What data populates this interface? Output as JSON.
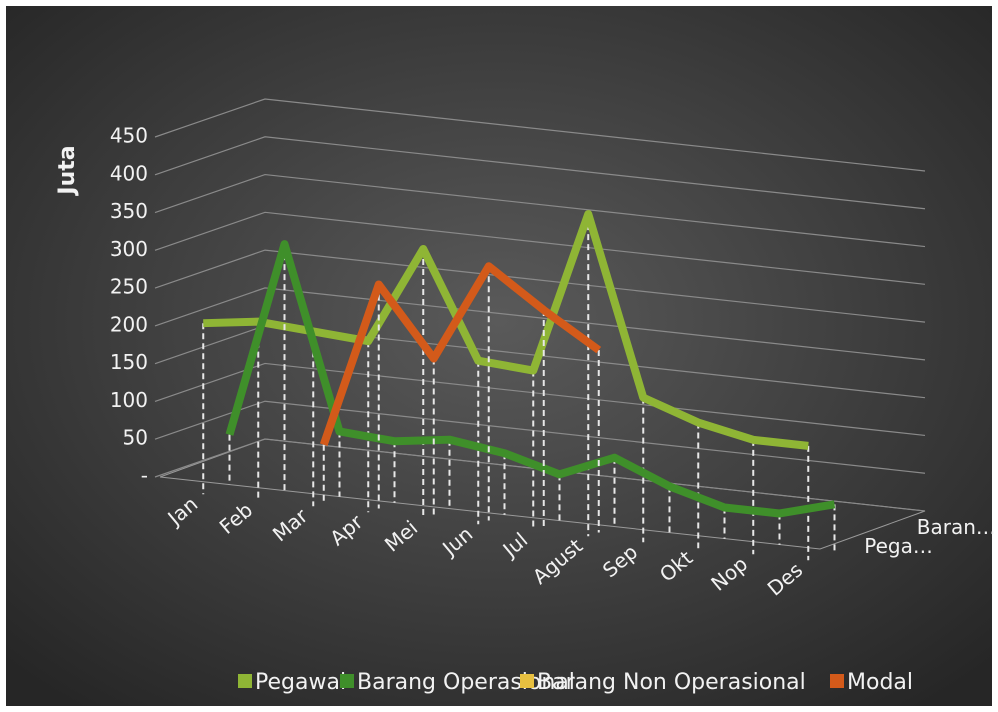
{
  "chart_data": {
    "type": "line3d",
    "y_axis_title": "Juta",
    "categories": [
      "Jan",
      "Feb",
      "Mar",
      "Apr",
      "Mei",
      "Jun",
      "Jul",
      "Agust",
      "Sep",
      "Okt",
      "Nop",
      "Des"
    ],
    "depth_labels": [
      "Pega…",
      "Baran…"
    ],
    "ylim": [
      0,
      450
    ],
    "yticks": [
      {
        "value": 0,
        "label": "-"
      },
      50,
      100,
      150,
      200,
      250,
      300,
      350,
      400,
      450
    ],
    "grid": true,
    "series": [
      {
        "name": "Pegawai",
        "color": "#8fb535",
        "values": [
          200,
          210,
          205,
          200,
          330,
          190,
          185,
          400,
          165,
          140,
          125,
          125
        ]
      },
      {
        "name": "Barang Operasional",
        "color": "#3f8f2a",
        "values": [
          40,
          300,
          60,
          55,
          65,
          55,
          35,
          65,
          35,
          15,
          15,
          35
        ]
      },
      {
        "name": "Barang Non Operasional",
        "color": "#e8c040",
        "values": [
          null,
          null,
          null,
          null,
          null,
          null,
          null,
          null,
          null,
          null,
          null,
          null
        ]
      },
      {
        "name": "Modal",
        "color": "#d35a1a",
        "values": [
          null,
          null,
          50,
          270,
          180,
          310,
          260,
          215,
          null,
          null,
          null,
          null
        ]
      }
    ]
  }
}
